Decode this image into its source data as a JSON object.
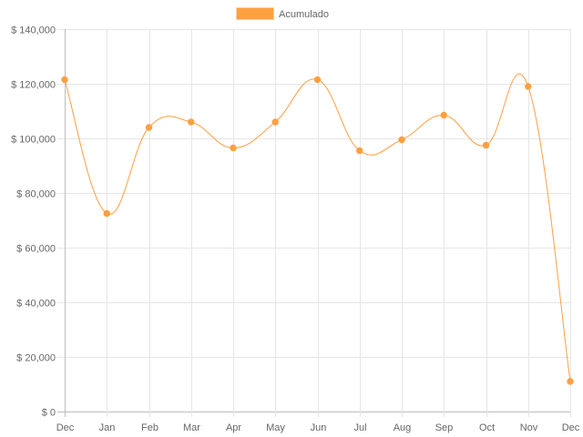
{
  "chart_data": {
    "type": "line",
    "categories": [
      "Dec",
      "Jan",
      "Feb",
      "Mar",
      "Apr",
      "May",
      "Jun",
      "Jul",
      "Aug",
      "Sep",
      "Oct",
      "Nov",
      "Dec"
    ],
    "series": [
      {
        "name": "Acumulado",
        "color": "#ff9f40",
        "values": [
          121500,
          72500,
          104000,
          106000,
          96500,
          106000,
          121500,
          95500,
          99500,
          108500,
          97500,
          119000,
          11000
        ]
      }
    ],
    "ylim": [
      0,
      140000
    ],
    "yticks": [
      0,
      20000,
      40000,
      60000,
      80000,
      100000,
      120000,
      140000
    ],
    "ytick_labels": [
      "$ 0",
      "$ 20,000",
      "$ 40,000",
      "$ 60,000",
      "$ 80,000",
      "$ 100,000",
      "$ 120,000",
      "$ 140,000"
    ],
    "legend": "top-center",
    "grid": true,
    "title": "",
    "xlabel": "",
    "ylabel": ""
  }
}
